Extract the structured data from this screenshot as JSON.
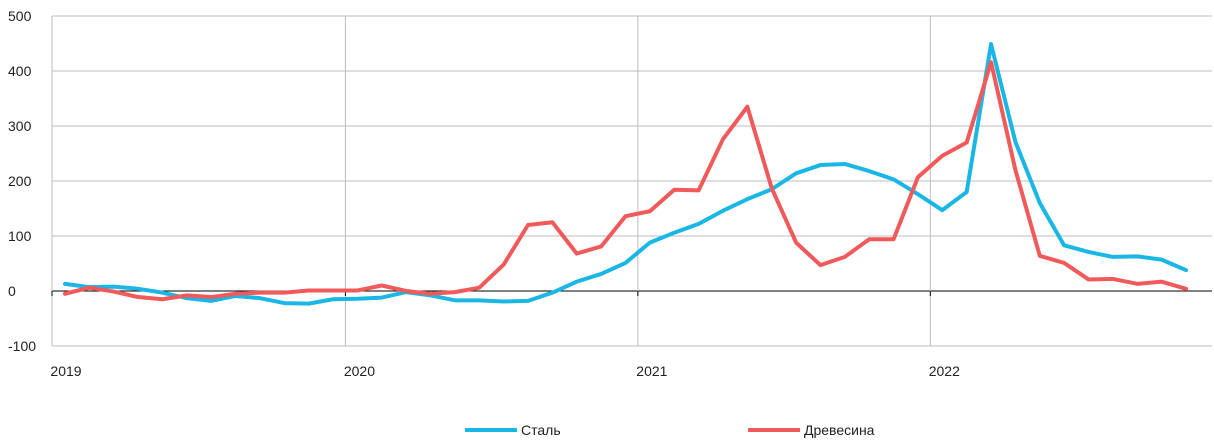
{
  "chart_data": {
    "type": "line",
    "title": "",
    "xlabel": "",
    "ylabel": "",
    "ylim": [
      -100,
      500
    ],
    "yticks": [
      500,
      400,
      300,
      200,
      100,
      0,
      -100
    ],
    "yticks_labels": [
      "500",
      "400",
      "300",
      "200",
      "100",
      "0",
      "-100"
    ],
    "xticks": [
      {
        "label": "2019",
        "value": 0
      },
      {
        "label": "2020",
        "value": 12
      },
      {
        "label": "2021",
        "value": 24
      },
      {
        "label": "2022",
        "value": 36
      }
    ],
    "xlim": [
      0,
      47
    ],
    "grid": true,
    "legend_position": "bottom",
    "series": [
      {
        "name": "Сталь",
        "color": "#1ab7e6",
        "values": [
          13,
          7,
          8,
          4,
          -3,
          -13,
          -18,
          -9,
          -13,
          -22,
          -23,
          -15,
          -14,
          -12,
          -2,
          -8,
          -17,
          -17,
          -19,
          -18,
          -3,
          17,
          31,
          51,
          88,
          106,
          122,
          146,
          167,
          185,
          214,
          229,
          231,
          218,
          203,
          176,
          147,
          180,
          449,
          271,
          160,
          83,
          71,
          62,
          63,
          57,
          38
        ]
      },
      {
        "name": "Древесина",
        "color": "#f15a5a",
        "values": [
          -5,
          6,
          -1,
          -11,
          -15,
          -8,
          -11,
          -5,
          -3,
          -3,
          1,
          1,
          1,
          10,
          0,
          -5,
          -2,
          6,
          48,
          120,
          125,
          68,
          81,
          136,
          145,
          184,
          183,
          276,
          335,
          187,
          88,
          47,
          62,
          94,
          94,
          207,
          246,
          270,
          416,
          220,
          64,
          51,
          21,
          22,
          13,
          17,
          4
        ]
      }
    ]
  }
}
